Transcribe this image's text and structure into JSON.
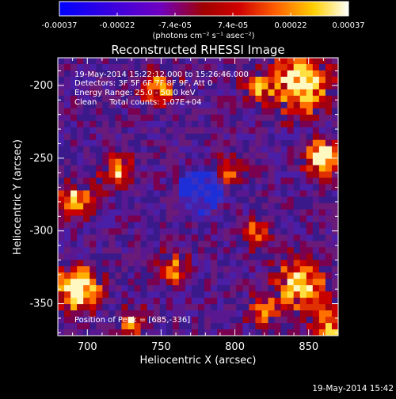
{
  "title": "Reconstructed RHESSI Image",
  "colorbar": {
    "tick_labels": [
      "-0.00037",
      "-0.00022",
      "-7.4e-05",
      "7.4e-05",
      "0.00022",
      "0.00037"
    ],
    "units": "(photons cm⁻² s⁻¹ asec⁻²)",
    "range": [
      -0.00037,
      0.00037
    ],
    "colors": [
      "#0000ff",
      "#7a00c8",
      "#c80000",
      "#ff7000",
      "#ffff00",
      "#ffffff"
    ]
  },
  "annotations": {
    "time_range": "19-May-2014 15:22:12.000 to 15:26:46.000",
    "detectors": "Detectors: 3F 5F 6F 7F 8F 9F, Att 0",
    "energy_range": "Energy Range: 25.0 - 50.0 keV",
    "clean_counts": "Clean     Total counts: 1.07E+04",
    "peak_position": "Position of Peak = [685,-336]"
  },
  "x_axis": {
    "label": "Heliocentric X (arcsec)",
    "tick_labels": [
      "700",
      "750",
      "800",
      "850"
    ],
    "ticks": [
      700,
      750,
      800,
      850
    ],
    "range": [
      680,
      870
    ]
  },
  "y_axis": {
    "label": "Heliocentric Y (arcsec)",
    "tick_labels": [
      "-200",
      "-250",
      "-300",
      "-350"
    ],
    "ticks": [
      -200,
      -250,
      -300,
      -350
    ],
    "range": [
      -372,
      -181
    ]
  },
  "footer_timestamp": "19-May-2014 15:42",
  "image_style": "pixelated noisy map, mostly purple/blue with red-yellow patches concentrated at edges; brightest blob near lower-left"
}
